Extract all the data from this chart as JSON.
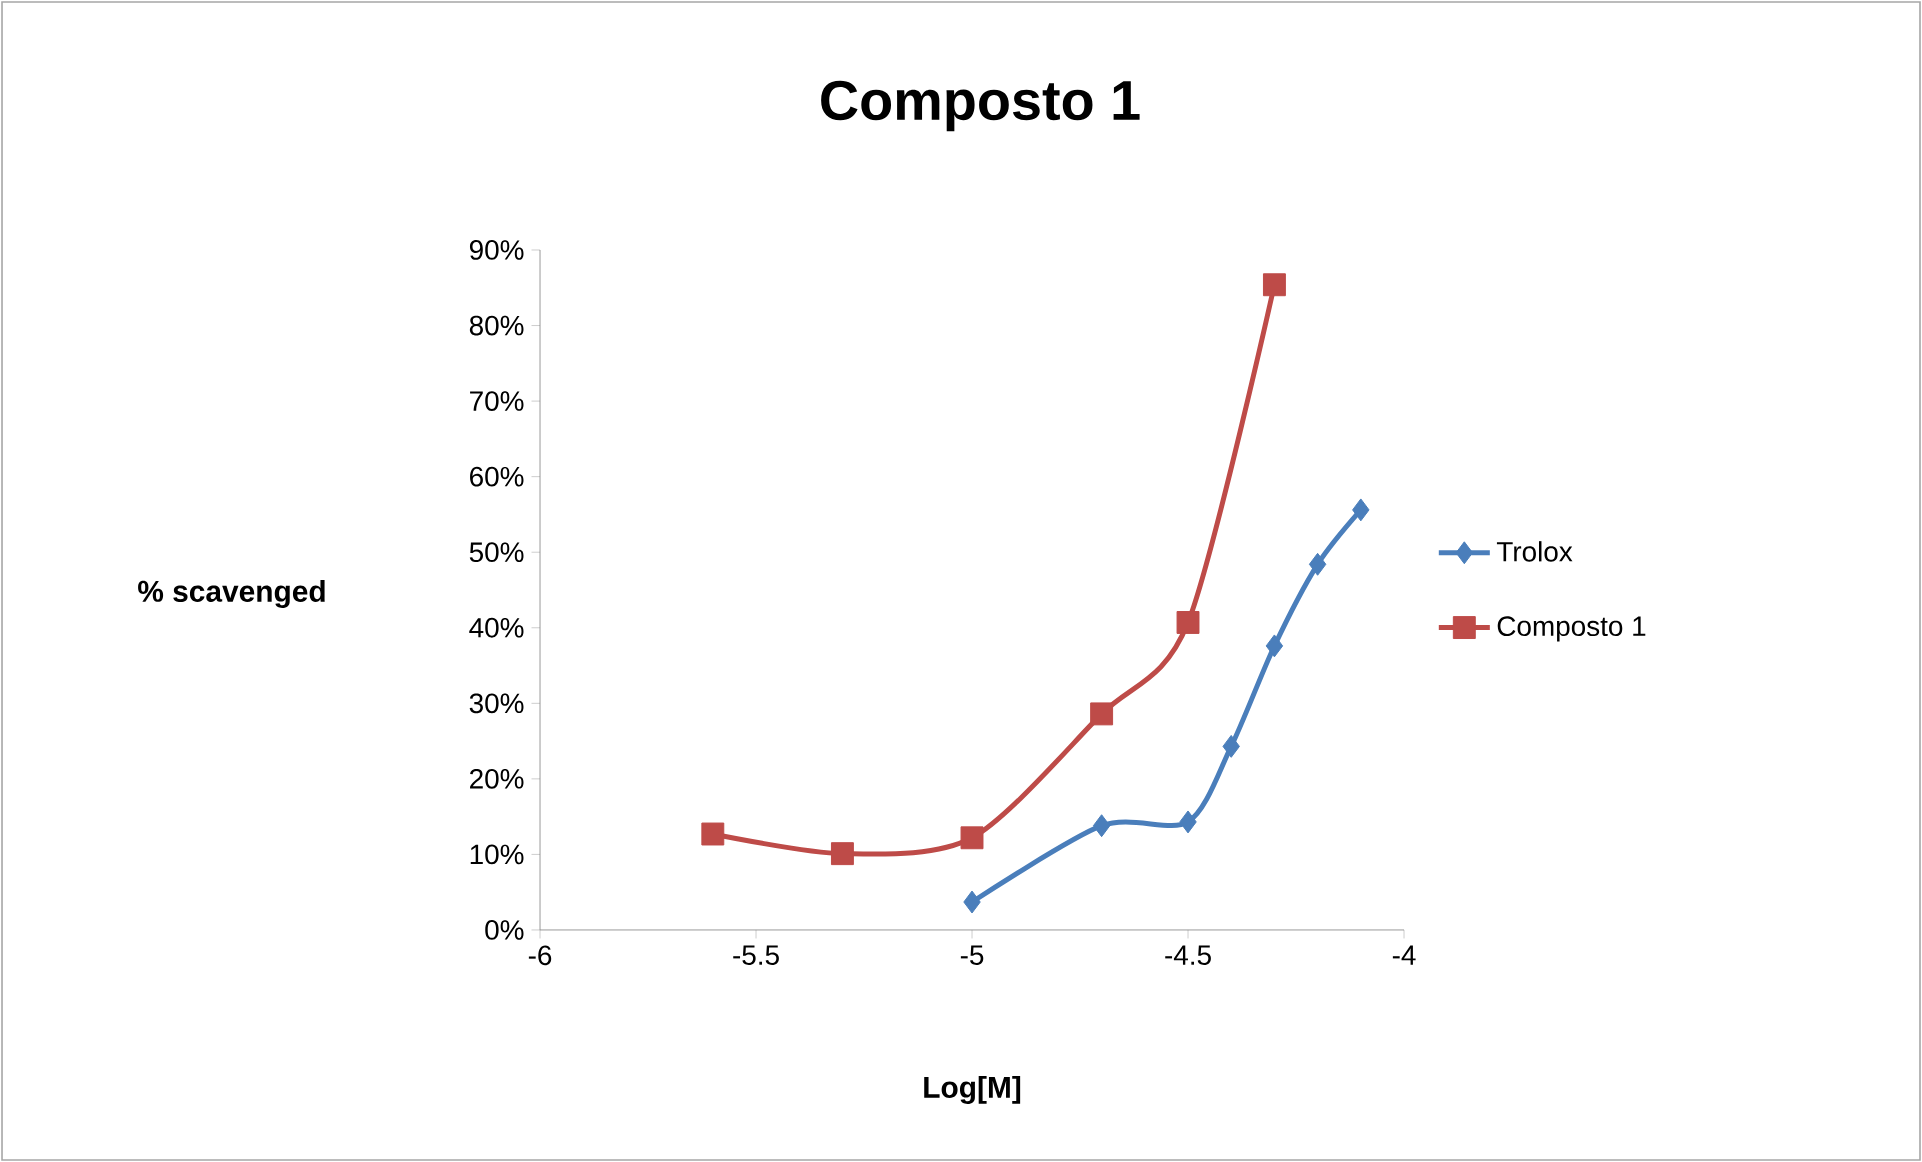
{
  "chart_data": {
    "type": "line",
    "title": "Composto 1",
    "xlabel": "Log[M]",
    "ylabel": "% scavenged",
    "xlim": [
      -6,
      -4
    ],
    "xticks": [
      -6,
      -5.5,
      -5,
      -4.5,
      -4
    ],
    "ylim": [
      0,
      90
    ],
    "yticks": [
      {
        "value": 0,
        "label": "0%"
      },
      {
        "value": 10,
        "label": "10%"
      },
      {
        "value": 20,
        "label": "20%"
      },
      {
        "value": 30,
        "label": "30%"
      },
      {
        "value": 40,
        "label": "40%"
      },
      {
        "value": 50,
        "label": "50%"
      },
      {
        "value": 60,
        "label": "60%"
      },
      {
        "value": 70,
        "label": "70%"
      },
      {
        "value": 80,
        "label": "80%"
      },
      {
        "value": 90,
        "label": "90%"
      }
    ],
    "grid": false,
    "legend": "right",
    "series": [
      {
        "name": "Trolox",
        "color": "#4a7ebb",
        "marker": "diamond",
        "x": [
          -5,
          -4.7,
          -4.5,
          -4.4,
          -4.3,
          -4.2,
          -4.1
        ],
        "values": [
          3.7,
          13.8,
          14.3,
          24.3,
          37.6,
          48.4,
          55.6
        ]
      },
      {
        "name": "Composto 1",
        "color": "#be4b48",
        "marker": "square",
        "x": [
          -5.6,
          -5.3,
          -5,
          -4.7,
          -4.5,
          -4.3
        ],
        "values": [
          12.7,
          10.1,
          12.2,
          28.6,
          40.7,
          85.4
        ]
      }
    ]
  }
}
